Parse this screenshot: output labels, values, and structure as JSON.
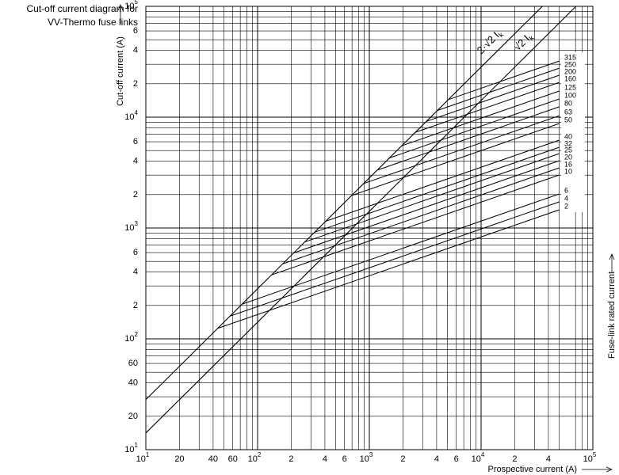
{
  "chart_data": {
    "type": "line",
    "title": [
      "Cut-off current diagram for",
      "VV-Thermo fuse links"
    ],
    "y_label": "Cut-off current (A)",
    "x_label": "Prospective current (A)",
    "right_label": "Fuse-link rated current",
    "log_scale": true,
    "grid": true,
    "color": "#000000",
    "xlim": [
      10,
      100000
    ],
    "ylim": [
      10,
      100000
    ],
    "xticks": [
      {
        "value": 10,
        "label": "10",
        "exp": "1"
      },
      20,
      40,
      60,
      {
        "value": 100,
        "label": "10",
        "exp": "2"
      },
      {
        "value": 200,
        "label": "2"
      },
      {
        "value": 400,
        "label": "4"
      },
      {
        "value": 600,
        "label": "6"
      },
      {
        "value": 1000,
        "label": "10",
        "exp": "3"
      },
      {
        "value": 2000,
        "label": "2"
      },
      {
        "value": 4000,
        "label": "4"
      },
      {
        "value": 6000,
        "label": "6"
      },
      {
        "value": 10000,
        "label": "10",
        "exp": "4"
      },
      {
        "value": 20000,
        "label": "2"
      },
      {
        "value": 40000,
        "label": "4"
      },
      {
        "value": 100000,
        "label": "10",
        "exp": "5"
      }
    ],
    "yticks": [
      {
        "value": 10,
        "label": "10",
        "exp": "1"
      },
      20,
      40,
      60,
      {
        "value": 100,
        "label": "10",
        "exp": "2"
      },
      {
        "value": 200,
        "label": "2"
      },
      {
        "value": 400,
        "label": "4"
      },
      {
        "value": 600,
        "label": "6"
      },
      {
        "value": 1000,
        "label": "10",
        "exp": "3"
      },
      {
        "value": 2000,
        "label": "2"
      },
      {
        "value": 4000,
        "label": "4"
      },
      {
        "value": 6000,
        "label": "6"
      },
      {
        "value": 10000,
        "label": "10",
        "exp": "4"
      },
      {
        "value": 20000,
        "label": "2"
      },
      {
        "value": 40000,
        "label": "4"
      },
      {
        "value": 60000,
        "label": "6"
      },
      {
        "value": 100000,
        "label": "10",
        "exp": "5"
      }
    ],
    "minor_grid_multiples": [
      3,
      5,
      7,
      8,
      9
    ],
    "reference_lines": [
      {
        "label": "2·√2 I",
        "sub": "k",
        "factor": 2.83
      },
      {
        "label": "√2 I",
        "sub": "k",
        "factor": 1.414
      }
    ],
    "series": [
      {
        "name": "315",
        "x": [
          5100,
          50000
        ],
        "values": [
          14400,
          32100
        ]
      },
      {
        "name": "250",
        "x": [
          4070,
          50000
        ],
        "values": [
          11500,
          27700
        ]
      },
      {
        "name": "200",
        "x": [
          3240,
          50000
        ],
        "values": [
          9170,
          23900
        ]
      },
      {
        "name": "160",
        "x": [
          2580,
          50000
        ],
        "values": [
          7300,
          20600
        ]
      },
      {
        "name": "125",
        "x": [
          1950,
          50000
        ],
        "values": [
          5520,
          17200
        ]
      },
      {
        "name": "100",
        "x": [
          1510,
          50000
        ],
        "values": [
          4280,
          14600
        ]
      },
      {
        "name": "80",
        "x": [
          1180,
          50000
        ],
        "values": [
          3330,
          12400
        ]
      },
      {
        "name": "63",
        "x": [
          890,
          50000
        ],
        "values": [
          2520,
          10300
        ]
      },
      {
        "name": "50",
        "x": [
          690,
          50000
        ],
        "values": [
          1960,
          8770
        ]
      },
      {
        "name": "40",
        "x": [
          406,
          50000
        ],
        "values": [
          1150,
          6210
        ]
      },
      {
        "name": "32",
        "x": [
          324,
          50000
        ],
        "values": [
          916,
          5350
        ]
      },
      {
        "name": "25",
        "x": [
          264,
          50000
        ],
        "values": [
          748,
          4690
        ]
      },
      {
        "name": "20",
        "x": [
          210,
          50000
        ],
        "values": [
          596,
          4050
        ]
      },
      {
        "name": "16",
        "x": [
          168,
          50000
        ],
        "values": [
          475,
          3490
        ]
      },
      {
        "name": "10",
        "x": [
          134,
          50000
        ],
        "values": [
          378,
          3010
        ]
      },
      {
        "name": "6",
        "x": [
          72.8,
          50000
        ],
        "values": [
          206,
          2030
        ]
      },
      {
        "name": "4",
        "x": [
          56.5,
          50000
        ],
        "values": [
          160,
          1720
        ]
      },
      {
        "name": "2",
        "x": [
          43.8,
          50000
        ],
        "values": [
          124,
          1460
        ]
      }
    ]
  }
}
